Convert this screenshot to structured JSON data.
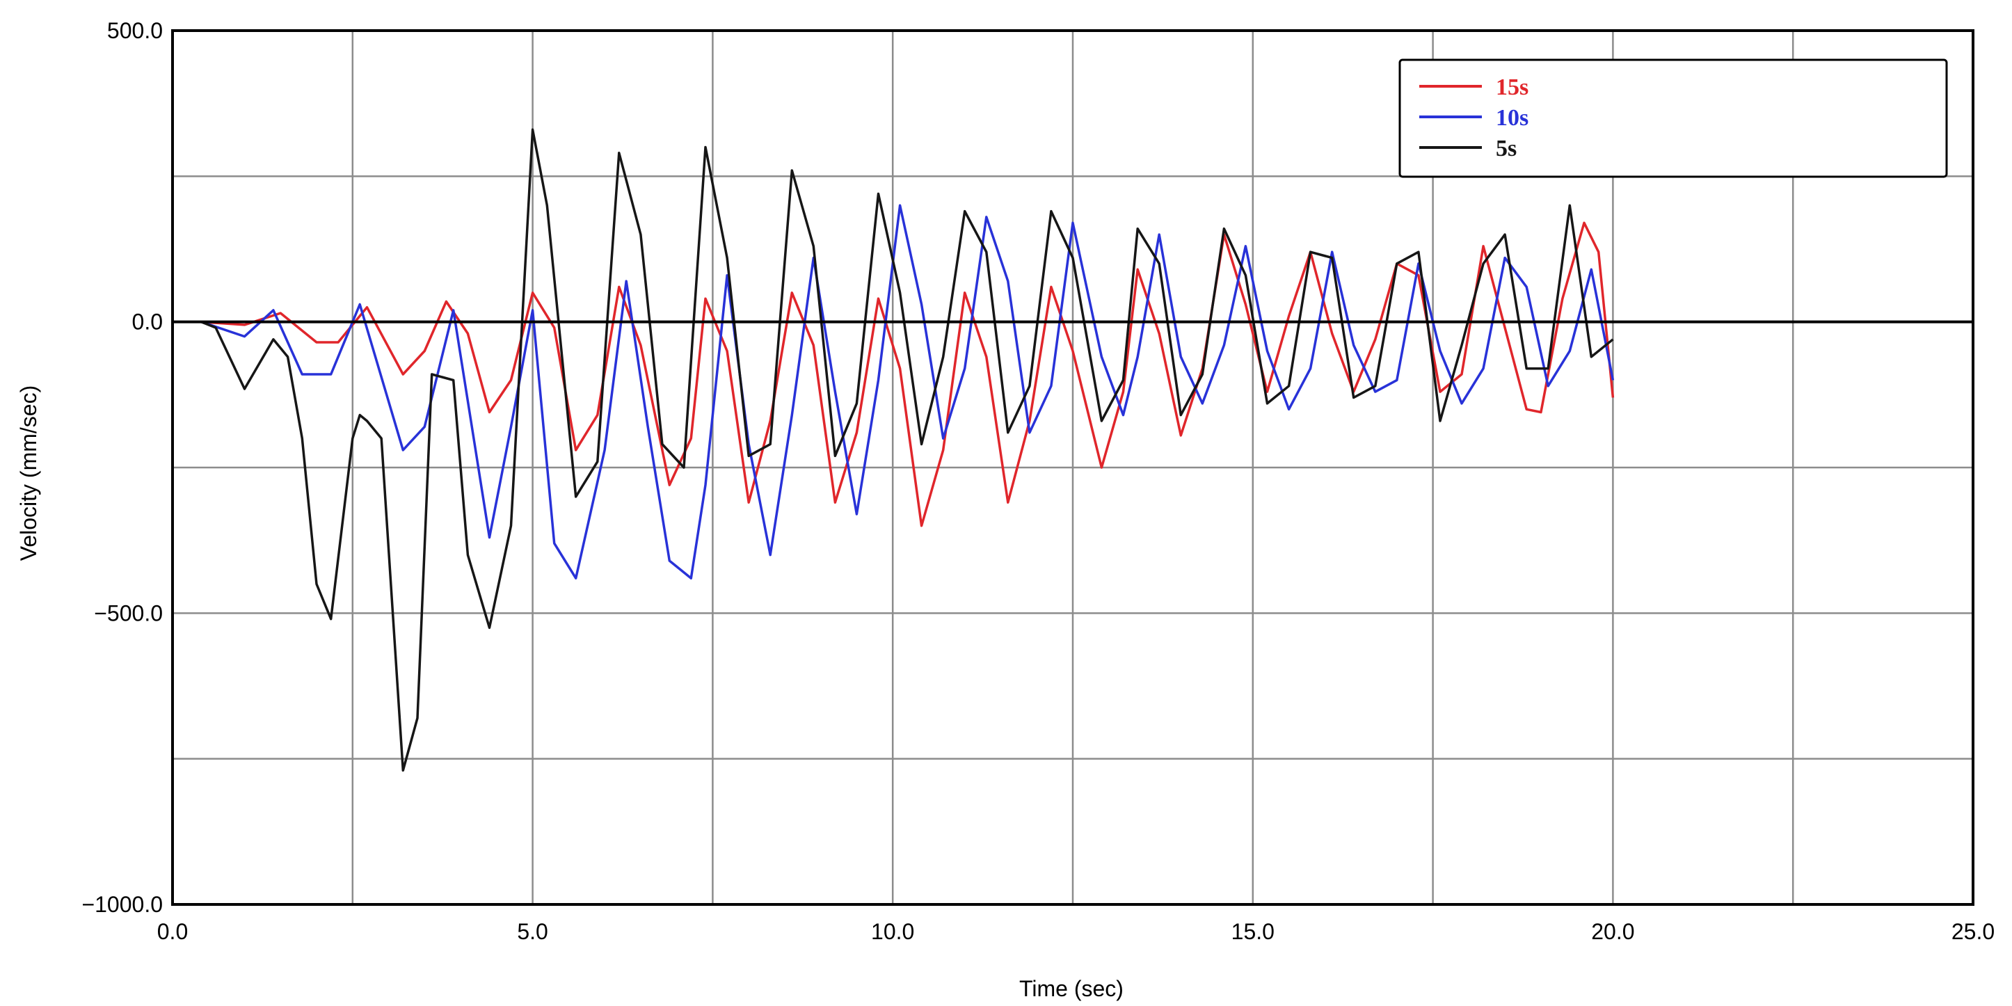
{
  "chart_data": {
    "type": "line",
    "title": "",
    "xlabel": "Time (sec)",
    "ylabel": "Velocity (mm/sec)",
    "xlim": [
      0,
      25
    ],
    "ylim": [
      -1000,
      500
    ],
    "x_ticks": [
      0,
      2.5,
      5,
      7.5,
      10,
      12.5,
      15,
      17.5,
      20,
      22.5,
      25
    ],
    "y_ticks": [
      500,
      250,
      0,
      -250,
      -500,
      -750,
      -1000
    ],
    "x_tick_labels": [
      "0.0",
      "5.0",
      "10.0",
      "15.0",
      "20.0",
      "25.0"
    ],
    "y_tick_labels": [
      "500.0",
      "0.0",
      "−500.0",
      "−1000.0"
    ],
    "grid": true,
    "legend_position": "top-right",
    "series": [
      {
        "name": "15s",
        "color": "#e0262b",
        "x": [
          0.4,
          1.0,
          1.5,
          2.0,
          2.3,
          2.7,
          3.2,
          3.5,
          3.8,
          4.1,
          4.4,
          4.7,
          5.0,
          5.3,
          5.6,
          5.9,
          6.2,
          6.5,
          6.9,
          7.2,
          7.4,
          7.7,
          8.0,
          8.3,
          8.6,
          8.9,
          9.2,
          9.5,
          9.8,
          10.1,
          10.4,
          10.7,
          11.0,
          11.3,
          11.6,
          11.9,
          12.2,
          12.5,
          12.9,
          13.2,
          13.4,
          13.7,
          14.0,
          14.3,
          14.6,
          14.9,
          15.2,
          15.5,
          15.8,
          16.1,
          16.4,
          16.7,
          17.0,
          17.3,
          17.6,
          17.9,
          18.2,
          18.5,
          18.8,
          19.0,
          19.3,
          19.6,
          19.8,
          20.0
        ],
        "values": [
          0,
          -5,
          15,
          -35,
          -35,
          25,
          -90,
          -50,
          35,
          -20,
          -155,
          -100,
          50,
          -10,
          -220,
          -160,
          60,
          -40,
          -280,
          -200,
          40,
          -50,
          -310,
          -170,
          50,
          -40,
          -310,
          -190,
          40,
          -80,
          -350,
          -220,
          50,
          -60,
          -310,
          -170,
          60,
          -50,
          -250,
          -120,
          90,
          -20,
          -195,
          -80,
          150,
          30,
          -120,
          10,
          120,
          -20,
          -120,
          -30,
          100,
          80,
          -120,
          -90,
          130,
          -10,
          -150,
          -155,
          40,
          170,
          120,
          -130
        ]
      },
      {
        "name": "10s",
        "color": "#2832d8",
        "x": [
          0.4,
          1.0,
          1.4,
          1.8,
          2.2,
          2.6,
          3.2,
          3.5,
          3.9,
          4.4,
          4.7,
          5.0,
          5.3,
          5.6,
          6.0,
          6.3,
          6.6,
          6.9,
          7.2,
          7.4,
          7.7,
          8.0,
          8.3,
          8.6,
          8.9,
          9.2,
          9.5,
          9.8,
          10.1,
          10.4,
          10.7,
          11.0,
          11.3,
          11.6,
          11.9,
          12.2,
          12.5,
          12.9,
          13.2,
          13.4,
          13.7,
          14.0,
          14.3,
          14.6,
          14.9,
          15.2,
          15.5,
          15.8,
          16.1,
          16.4,
          16.7,
          17.0,
          17.3,
          17.6,
          17.9,
          18.2,
          18.5,
          18.8,
          19.1,
          19.4,
          19.7,
          20.0
        ],
        "values": [
          0,
          -25,
          20,
          -90,
          -90,
          30,
          -220,
          -180,
          20,
          -370,
          -180,
          20,
          -380,
          -440,
          -220,
          70,
          -180,
          -410,
          -440,
          -280,
          80,
          -210,
          -400,
          -160,
          110,
          -120,
          -330,
          -100,
          200,
          30,
          -200,
          -80,
          180,
          70,
          -190,
          -110,
          170,
          -60,
          -160,
          -60,
          150,
          -60,
          -140,
          -40,
          130,
          -50,
          -150,
          -80,
          120,
          -40,
          -120,
          -100,
          100,
          -50,
          -140,
          -80,
          110,
          60,
          -110,
          -50,
          90,
          -100
        ]
      },
      {
        "name": "5s",
        "color": "#161616",
        "x": [
          0.4,
          0.6,
          1.0,
          1.4,
          1.6,
          1.8,
          2.0,
          2.2,
          2.5,
          2.6,
          2.7,
          2.9,
          3.2,
          3.4,
          3.6,
          3.9,
          4.1,
          4.4,
          4.7,
          5.0,
          5.2,
          5.6,
          5.9,
          6.2,
          6.5,
          6.8,
          7.1,
          7.4,
          7.7,
          8.0,
          8.3,
          8.6,
          8.9,
          9.2,
          9.5,
          9.8,
          10.1,
          10.4,
          10.7,
          11.0,
          11.3,
          11.6,
          11.9,
          12.2,
          12.5,
          12.9,
          13.2,
          13.4,
          13.7,
          14.0,
          14.3,
          14.6,
          14.9,
          15.2,
          15.5,
          15.8,
          16.1,
          16.4,
          16.7,
          17.0,
          17.3,
          17.6,
          17.9,
          18.2,
          18.5,
          18.8,
          19.1,
          19.4,
          19.7,
          20.0
        ],
        "values": [
          0,
          -10,
          -115,
          -30,
          -60,
          -200,
          -450,
          -510,
          -200,
          -160,
          -170,
          -200,
          -770,
          -680,
          -90,
          -100,
          -400,
          -525,
          -350,
          330,
          200,
          -300,
          -240,
          290,
          150,
          -210,
          -250,
          300,
          110,
          -230,
          -210,
          260,
          130,
          -230,
          -140,
          220,
          50,
          -210,
          -60,
          190,
          120,
          -190,
          -110,
          190,
          110,
          -170,
          -100,
          160,
          100,
          -160,
          -90,
          160,
          80,
          -140,
          -110,
          120,
          110,
          -130,
          -110,
          100,
          120,
          -170,
          -40,
          100,
          150,
          -80,
          -80,
          200,
          -60,
          -30
        ]
      }
    ]
  }
}
